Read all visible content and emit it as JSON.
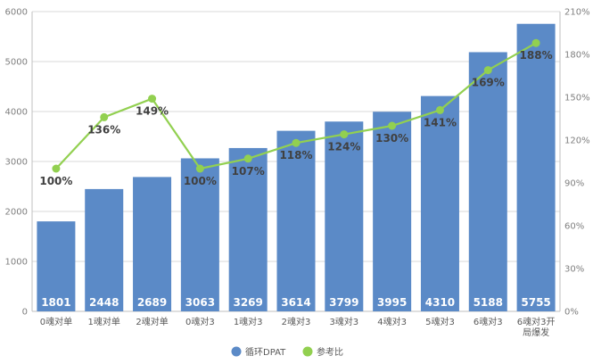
{
  "chart_data": {
    "type": "bar",
    "categories": [
      "0魂对单",
      "1魂对单",
      "2魂对单",
      "0魂对3",
      "1魂对3",
      "2魂对3",
      "3魂对3",
      "4魂对3",
      "5魂对3",
      "6魂对3",
      "6魂对3开局爆发"
    ],
    "series": [
      {
        "name": "循环DPAT",
        "type": "bar",
        "axis": "left",
        "color": "#5b8ac7",
        "values": [
          1801,
          2448,
          2689,
          3063,
          3269,
          3614,
          3799,
          3995,
          4310,
          5188,
          5755
        ],
        "labels": [
          "1801",
          "2448",
          "2689",
          "3063",
          "3269",
          "3614",
          "3799",
          "3995",
          "4310",
          "5188",
          "5755"
        ]
      },
      {
        "name": "参考比",
        "type": "line",
        "axis": "right",
        "color": "#92d050",
        "values": [
          100,
          136,
          149,
          100,
          107,
          118,
          124,
          130,
          141,
          169,
          188
        ],
        "labels": [
          "100%",
          "136%",
          "149%",
          "100%",
          "107%",
          "118%",
          "124%",
          "130%",
          "141%",
          "169%",
          "188%"
        ]
      }
    ],
    "y_left": {
      "ylim": [
        0,
        6000
      ],
      "ticks": [
        "0",
        "1000",
        "2000",
        "3000",
        "4000",
        "5000",
        "6000"
      ]
    },
    "y_right": {
      "ylim": [
        0,
        210
      ],
      "ticks": [
        "0%",
        "30%",
        "60%",
        "90%",
        "120%",
        "150%",
        "180%",
        "210%"
      ]
    },
    "grid": true,
    "legend": "bottom"
  }
}
